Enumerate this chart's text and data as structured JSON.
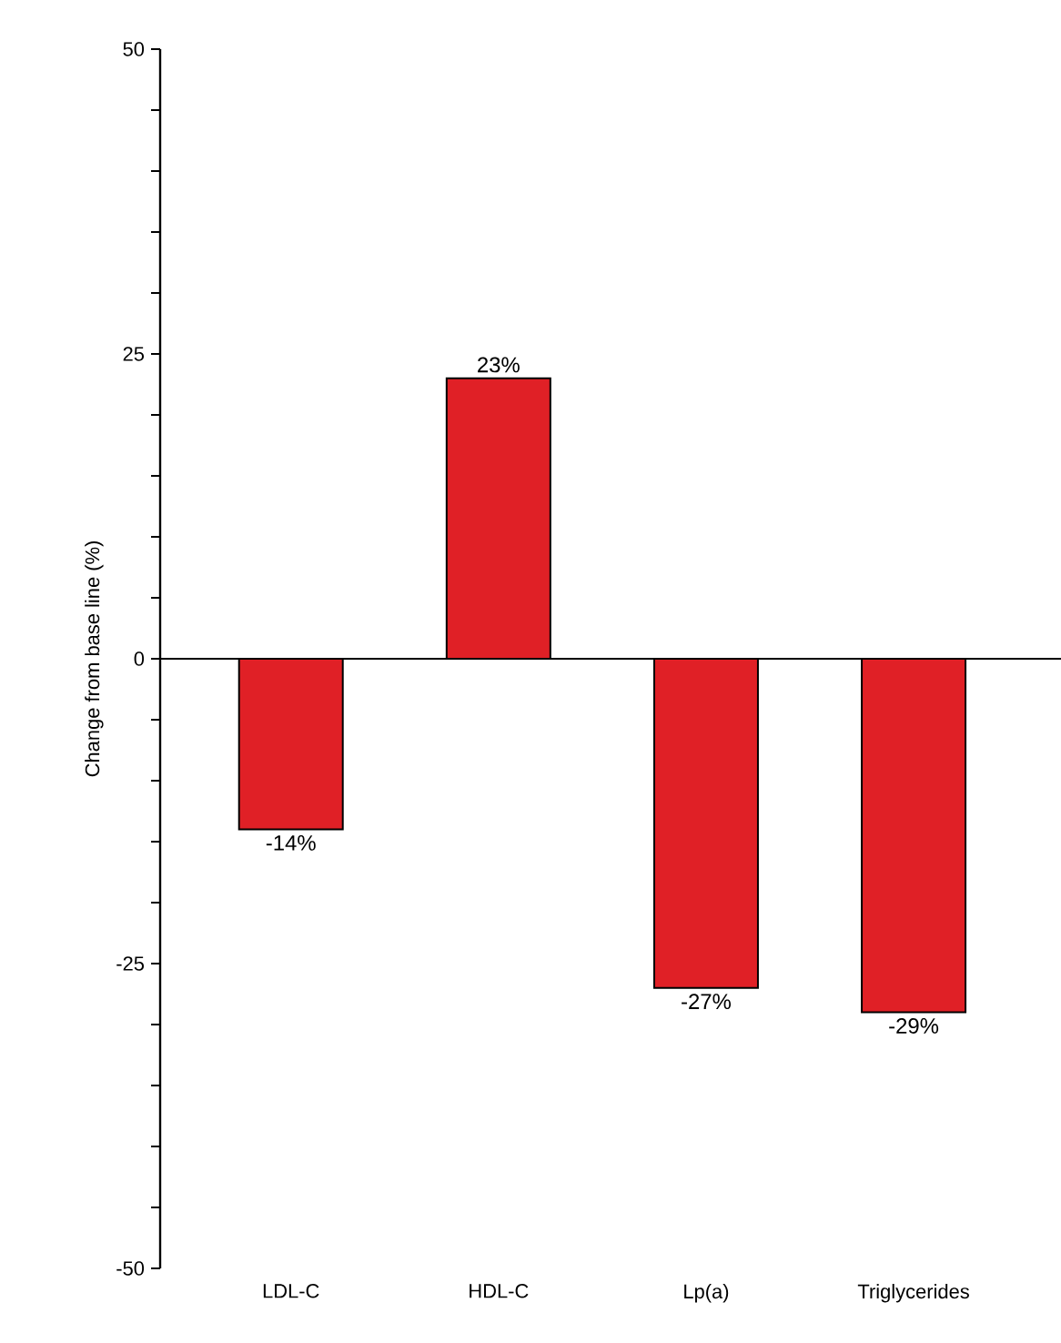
{
  "chart_data": {
    "type": "bar",
    "ylabel": "Change from base line (%)",
    "categories": [
      "LDL-C",
      "HDL-C",
      "Lp(a)",
      "Triglycerides"
    ],
    "values": [
      -14,
      23,
      -27,
      -29
    ],
    "value_labels": [
      "-14%",
      "23%",
      "-27%",
      "-29%"
    ],
    "color": "#e02026",
    "ylim": [
      -50,
      50
    ],
    "yticks": [
      -50,
      {
        "value": -45,
        "label": null
      },
      {
        "value": -40,
        "label": null
      },
      {
        "value": -35,
        "label": null
      },
      {
        "value": -30,
        "label": null
      },
      -25,
      {
        "value": -20,
        "label": null
      },
      {
        "value": -15,
        "label": null
      },
      {
        "value": -10,
        "label": null
      },
      {
        "value": -5,
        "label": null
      },
      0,
      {
        "value": 5,
        "label": null
      },
      {
        "value": 10,
        "label": null
      },
      {
        "value": 15,
        "label": null
      },
      {
        "value": 20,
        "label": null
      },
      25,
      {
        "value": 30,
        "label": null
      },
      {
        "value": 35,
        "label": null
      },
      {
        "value": 40,
        "label": null
      },
      {
        "value": 45,
        "label": null
      },
      50
    ]
  }
}
